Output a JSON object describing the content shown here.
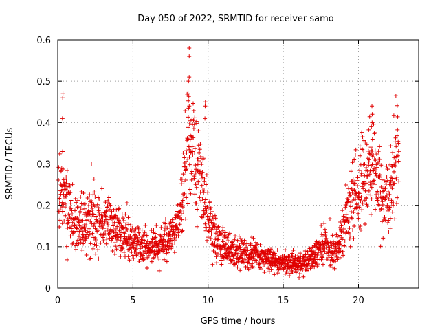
{
  "chart_data": {
    "type": "scatter",
    "title": "Day 050 of 2022, SRMTID for receiver samo",
    "xlabel": "GPS time / hours",
    "ylabel": "SRMTID / TECUs",
    "xlim": [
      0,
      24
    ],
    "ylim": [
      0,
      0.6
    ],
    "xticks": [
      0,
      5,
      10,
      15,
      20
    ],
    "xtick_labels": [
      "0",
      "5",
      "10",
      "15",
      "20"
    ],
    "yticks": [
      0,
      0.1,
      0.2,
      0.3,
      0.4,
      0.5,
      0.6
    ],
    "ytick_labels": [
      "0",
      "0.1",
      "0.2",
      "0.3",
      "0.4",
      "0.5",
      "0.6"
    ],
    "grid": true,
    "marker": "+",
    "series": [
      {
        "name": "SRMTID",
        "color": "#e00000",
        "profile": [
          [
            0.0,
            0.2
          ],
          [
            0.3,
            0.24
          ],
          [
            0.6,
            0.2
          ],
          [
            1.0,
            0.16
          ],
          [
            1.5,
            0.15
          ],
          [
            2.0,
            0.16
          ],
          [
            2.5,
            0.17
          ],
          [
            3.0,
            0.16
          ],
          [
            3.5,
            0.16
          ],
          [
            4.0,
            0.15
          ],
          [
            4.5,
            0.13
          ],
          [
            5.0,
            0.11
          ],
          [
            5.5,
            0.1
          ],
          [
            6.0,
            0.1
          ],
          [
            6.5,
            0.1
          ],
          [
            7.0,
            0.11
          ],
          [
            7.5,
            0.12
          ],
          [
            8.0,
            0.15
          ],
          [
            8.3,
            0.22
          ],
          [
            8.5,
            0.3
          ],
          [
            8.7,
            0.34
          ],
          [
            9.0,
            0.33
          ],
          [
            9.3,
            0.29
          ],
          [
            9.6,
            0.23
          ],
          [
            10.0,
            0.17
          ],
          [
            10.5,
            0.12
          ],
          [
            11.0,
            0.1
          ],
          [
            12.0,
            0.09
          ],
          [
            13.0,
            0.08
          ],
          [
            14.0,
            0.07
          ],
          [
            15.0,
            0.06
          ],
          [
            16.0,
            0.055
          ],
          [
            17.0,
            0.07
          ],
          [
            17.5,
            0.11
          ],
          [
            18.0,
            0.1
          ],
          [
            18.5,
            0.08
          ],
          [
            19.0,
            0.14
          ],
          [
            19.5,
            0.22
          ],
          [
            20.0,
            0.25
          ],
          [
            20.5,
            0.28
          ],
          [
            21.0,
            0.3
          ],
          [
            21.5,
            0.22
          ],
          [
            22.0,
            0.21
          ],
          [
            22.5,
            0.3
          ],
          [
            22.7,
            0.34
          ]
        ],
        "highlights": [
          {
            "x": 0.35,
            "values": [
              0.41,
              0.46,
              0.47,
              0.33
            ]
          },
          {
            "x": 8.7,
            "values": [
              0.58,
              0.56,
              0.51,
              0.5,
              0.47,
              0.44
            ]
          },
          {
            "x": 9.8,
            "values": [
              0.45,
              0.44,
              0.41
            ]
          },
          {
            "x": 20.9,
            "values": [
              0.44,
              0.42,
              0.4,
              0.39
            ]
          },
          {
            "x": 1.5,
            "values": [
              0.22
            ]
          },
          {
            "x": 2.2,
            "values": [
              0.3
            ]
          },
          {
            "x": 19.7,
            "values": [
              0.31
            ]
          }
        ]
      }
    ]
  }
}
